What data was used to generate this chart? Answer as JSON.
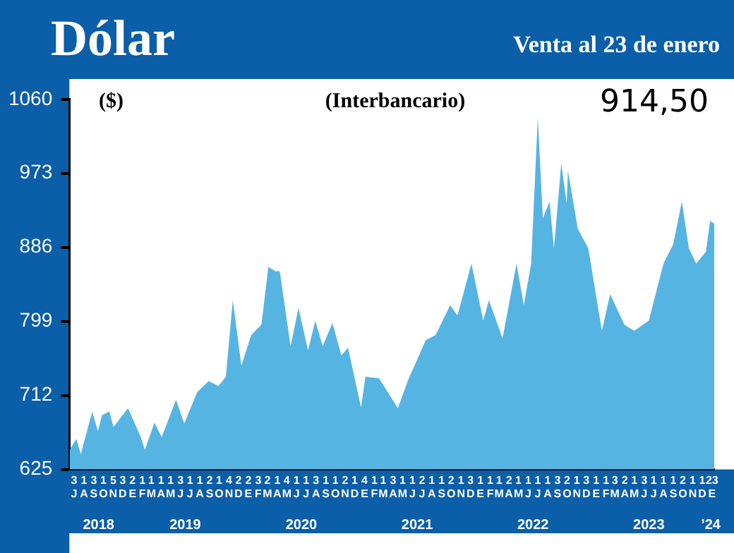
{
  "chart_data": {
    "type": "area",
    "title": "Dólar",
    "subtitle": "Venta al 23 de enero",
    "ylabel": "($)",
    "annotations": [
      "(Interbancario)",
      "914,50"
    ],
    "x": [
      "2018-07-02",
      "2018-07-23",
      "2018-08-06",
      "2018-09-11",
      "2018-09-29",
      "2018-10-12",
      "2018-11-04",
      "2018-11-17",
      "2019-01-02",
      "2019-02-11",
      "2019-02-24",
      "2019-03-26",
      "2019-04-18",
      "2019-06-02",
      "2019-06-28",
      "2019-08-08",
      "2019-09-13",
      "2019-10-14",
      "2019-11-06",
      "2019-11-28",
      "2019-12-25",
      "2020-01-25",
      "2020-02-26",
      "2020-03-19",
      "2020-04-10",
      "2020-04-24",
      "2020-05-28",
      "2020-06-22",
      "2020-07-22",
      "2020-08-14",
      "2020-09-06",
      "2020-10-07",
      "2020-11-04",
      "2020-11-25",
      "2021-01-05",
      "2021-01-19",
      "2021-03-03",
      "2021-04-16",
      "2021-05-01",
      "2021-06-01",
      "2021-07-28",
      "2021-08-28",
      "2021-10-13",
      "2021-11-05",
      "2021-12-19",
      "2022-01-25",
      "2022-02-12",
      "2022-03-27",
      "2022-05-10",
      "2022-06-02",
      "2022-06-25",
      "2022-07-16",
      "2022-08-01",
      "2022-08-22",
      "2022-09-05",
      "2022-09-28",
      "2022-10-15",
      "2022-10-19",
      "2022-11-19",
      "2022-12-22",
      "2023-02-03",
      "2023-03-01",
      "2023-04-15",
      "2023-05-16",
      "2023-07-01",
      "2023-08-16",
      "2023-09-16",
      "2023-10-13",
      "2023-11-04",
      "2023-11-27",
      "2023-12-28",
      "2024-01-10",
      "2024-01-23"
    ],
    "series": [
      {
        "color": "#56b4e3",
        "values": [
          648,
          661,
          643,
          693,
          670,
          689,
          693,
          675,
          697,
          663,
          648,
          680,
          663,
          707,
          679,
          716,
          729,
          723,
          734,
          824,
          747,
          783,
          795,
          863,
          858,
          858,
          770,
          815,
          765,
          800,
          770,
          797,
          759,
          768,
          698,
          734,
          732,
          706,
          697,
          729,
          777,
          783,
          818,
          806,
          867,
          800,
          824,
          779,
          867,
          818,
          867,
          1039,
          920,
          940,
          885,
          985,
          938,
          976,
          908,
          885,
          788,
          831,
          795,
          788,
          800,
          867,
          890,
          940,
          885,
          867,
          881,
          917,
          914
        ]
      }
    ],
    "xlim": [
      "2018-07-01",
      "2024-01-23"
    ],
    "ylim": [
      625,
      1060
    ],
    "yticks": [
      625,
      712,
      799,
      886,
      973,
      1060
    ],
    "xticks": [
      {
        "value": "2018-07-16",
        "label": "3\nJ"
      },
      {
        "value": "2018-08-16",
        "label": "1\nA"
      },
      {
        "value": "2018-09-16",
        "label": "3\nS"
      },
      {
        "value": "2018-10-16",
        "label": "1\nO"
      },
      {
        "value": "2018-11-16",
        "label": "5\nN"
      },
      {
        "value": "2018-12-16",
        "label": "3\nD"
      },
      {
        "value": "2019-01-16",
        "label": "2\nE"
      },
      {
        "value": "2019-02-16",
        "label": "1\nF"
      },
      {
        "value": "2019-03-16",
        "label": "1\nM"
      },
      {
        "value": "2019-04-16",
        "label": "1\nA"
      },
      {
        "value": "2019-05-16",
        "label": "1\nM"
      },
      {
        "value": "2019-06-16",
        "label": "3\nJ"
      },
      {
        "value": "2019-07-16",
        "label": "1\nJ"
      },
      {
        "value": "2019-08-16",
        "label": "1\nA"
      },
      {
        "value": "2019-09-16",
        "label": "2\nS"
      },
      {
        "value": "2019-10-16",
        "label": "1\nO"
      },
      {
        "value": "2019-11-16",
        "label": "4\nN"
      },
      {
        "value": "2019-12-16",
        "label": "2\nD"
      },
      {
        "value": "2020-01-16",
        "label": "2\nE"
      },
      {
        "value": "2020-02-16",
        "label": "3\nF"
      },
      {
        "value": "2020-03-16",
        "label": "2\nM"
      },
      {
        "value": "2020-04-16",
        "label": "1\nA"
      },
      {
        "value": "2020-05-16",
        "label": "4\nM"
      },
      {
        "value": "2020-06-16",
        "label": "1\nJ"
      },
      {
        "value": "2020-07-16",
        "label": "1\nJ"
      },
      {
        "value": "2020-08-16",
        "label": "3\nA"
      },
      {
        "value": "2020-09-16",
        "label": "1\nS"
      },
      {
        "value": "2020-10-16",
        "label": "1\nO"
      },
      {
        "value": "2020-11-16",
        "label": "2\nN"
      },
      {
        "value": "2020-12-16",
        "label": "1\nD"
      },
      {
        "value": "2021-01-16",
        "label": "4\nE"
      },
      {
        "value": "2021-02-16",
        "label": "1\nF"
      },
      {
        "value": "2021-03-16",
        "label": "1\nM"
      },
      {
        "value": "2021-04-16",
        "label": "3\nA"
      },
      {
        "value": "2021-05-16",
        "label": "1\nM"
      },
      {
        "value": "2021-06-16",
        "label": "1\nJ"
      },
      {
        "value": "2021-07-16",
        "label": "2\nJ"
      },
      {
        "value": "2021-08-16",
        "label": "1\nA"
      },
      {
        "value": "2021-09-16",
        "label": "1\nS"
      },
      {
        "value": "2021-10-16",
        "label": "2\nO"
      },
      {
        "value": "2021-11-16",
        "label": "1\nN"
      },
      {
        "value": "2021-12-16",
        "label": "3\nD"
      },
      {
        "value": "2022-01-16",
        "label": "1\nE"
      },
      {
        "value": "2022-02-16",
        "label": "1\nF"
      },
      {
        "value": "2022-03-16",
        "label": "1\nM"
      },
      {
        "value": "2022-04-16",
        "label": "2\nA"
      },
      {
        "value": "2022-05-16",
        "label": "1\nM"
      },
      {
        "value": "2022-06-16",
        "label": "1\nJ"
      },
      {
        "value": "2022-07-16",
        "label": "1\nJ"
      },
      {
        "value": "2022-08-16",
        "label": "1\nA"
      },
      {
        "value": "2022-09-16",
        "label": "3\nS"
      },
      {
        "value": "2022-10-16",
        "label": "2\nO"
      },
      {
        "value": "2022-11-16",
        "label": "1\nN"
      },
      {
        "value": "2022-12-16",
        "label": "3\nD"
      },
      {
        "value": "2023-01-16",
        "label": "1\nE"
      },
      {
        "value": "2023-02-16",
        "label": "1\nF"
      },
      {
        "value": "2023-03-16",
        "label": "3\nM"
      },
      {
        "value": "2023-04-16",
        "label": "2\nA"
      },
      {
        "value": "2023-05-16",
        "label": "1\nM"
      },
      {
        "value": "2023-06-16",
        "label": "3\nJ"
      },
      {
        "value": "2023-07-16",
        "label": "1\nJ"
      },
      {
        "value": "2023-08-16",
        "label": "1\nA"
      },
      {
        "value": "2023-09-16",
        "label": "1\nS"
      },
      {
        "value": "2023-10-16",
        "label": "2\nO"
      },
      {
        "value": "2023-11-16",
        "label": "1\nN"
      },
      {
        "value": "2023-12-16",
        "label": "1\nD"
      },
      {
        "value": "2024-01-16",
        "label": "23\nE"
      }
    ],
    "x2lim": [
      "2018-07-01",
      "2024-01-23"
    ],
    "x2ticks": [
      {
        "value": "2018-10-01",
        "label": "2018"
      },
      {
        "value": "2019-07-01",
        "label": "2019"
      },
      {
        "value": "2020-07-01",
        "label": "2020"
      },
      {
        "value": "2021-07-01",
        "label": "2021"
      },
      {
        "value": "2022-07-01",
        "label": "2022"
      },
      {
        "value": "2023-07-01",
        "label": "2023"
      },
      {
        "value": "2024-01-12",
        "label": "’24"
      }
    ]
  }
}
